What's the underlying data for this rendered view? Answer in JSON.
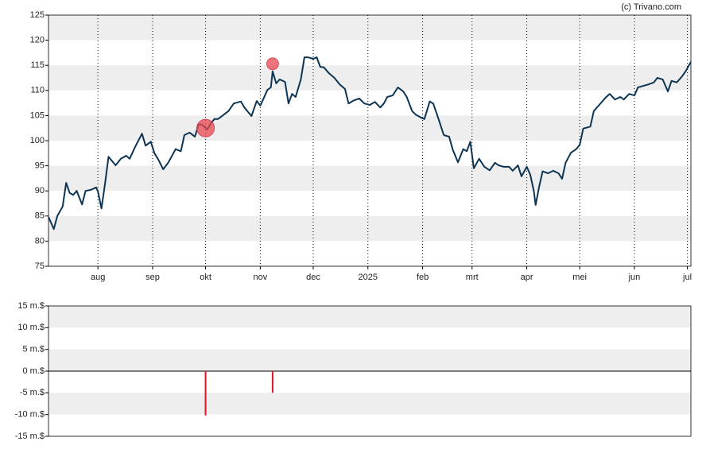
{
  "chart_data": [
    {
      "type": "line",
      "credit": "(c) Trivano.com",
      "x": [
        -28,
        -25,
        -23,
        -20,
        -18,
        -16,
        -14,
        -12,
        -9,
        -7,
        -4,
        -1,
        0,
        2,
        4,
        6,
        10,
        13,
        16,
        18,
        21,
        25,
        27,
        30,
        32,
        34,
        37,
        40,
        44,
        47,
        49,
        52,
        55,
        57,
        59,
        62,
        64,
        66,
        68,
        71,
        74,
        77,
        81,
        83,
        87,
        90,
        92,
        94,
        96,
        98,
        99,
        101,
        103,
        106,
        108,
        110,
        112,
        115,
        117,
        119,
        122,
        124,
        126,
        128,
        131,
        134,
        137,
        140,
        142,
        145,
        148,
        151,
        154,
        157,
        160,
        162,
        164,
        167,
        170,
        173,
        175,
        178,
        180,
        183,
        185,
        188,
        190,
        193,
        196,
        199,
        201,
        204,
        207,
        209,
        211,
        213,
        216,
        219,
        222,
        225,
        227,
        230,
        233,
        235,
        238,
        240,
        243,
        245,
        247,
        248,
        250,
        252,
        255,
        258,
        261,
        263,
        265,
        268,
        271,
        273,
        275,
        279,
        281,
        284,
        288,
        290,
        293,
        296,
        298,
        301,
        304,
        306,
        309,
        312,
        315,
        317,
        320,
        323,
        325,
        328,
        331,
        333,
        336
      ],
      "series": [
        {
          "color": "#0d3553",
          "values": [
            84.8,
            82.4,
            85,
            86.9,
            91.6,
            89.6,
            89.2,
            90,
            87.3,
            90,
            90.2,
            90.7,
            89.9,
            86.5,
            91.3,
            96.8,
            95.1,
            96.4,
            97,
            96.4,
            98.7,
            101.4,
            99,
            99.8,
            97.5,
            96.4,
            94.3,
            95.7,
            98.3,
            97.9,
            101.1,
            101.6,
            100.8,
            103.2,
            103.2,
            102.2,
            103.5,
            104.3,
            104.3,
            105.1,
            105.9,
            107.4,
            107.8,
            106.6,
            104.9,
            107.9,
            107,
            108.5,
            110.1,
            110.6,
            113.8,
            111.4,
            112.2,
            111.7,
            107.4,
            109.3,
            108.7,
            112.2,
            116.6,
            116.6,
            116.3,
            116.6,
            114.7,
            114.6,
            113.4,
            112.5,
            111.2,
            110.3,
            107.4,
            108,
            108.4,
            107.4,
            107.1,
            107.7,
            106.6,
            107.4,
            108.7,
            109,
            110.6,
            109.8,
            108.7,
            105.9,
            105.2,
            104.6,
            104.3,
            107.8,
            107.4,
            104.3,
            101.1,
            100.8,
            98.3,
            95.7,
            98.3,
            97.9,
            99.8,
            94.5,
            96.4,
            94.8,
            94.1,
            95.6,
            95.1,
            94.8,
            94.8,
            94,
            95.1,
            92.9,
            94.8,
            93.2,
            90,
            87.2,
            90.8,
            93.9,
            93.5,
            94,
            93.5,
            92.4,
            95.6,
            97.6,
            98.3,
            99.2,
            102.4,
            102.8,
            105.9,
            107.1,
            108.7,
            109.3,
            108.2,
            108.7,
            108.2,
            109.3,
            109,
            110.6,
            110.9,
            111.2,
            111.6,
            112.5,
            112.2,
            109.8,
            111.9,
            111.6,
            112.8,
            113.8,
            115.7
          ]
        }
      ],
      "markers": {
        "x": [
          61,
          99
        ],
        "values": [
          102.5,
          115.3
        ],
        "color": "#e8474f"
      },
      "xlim": [
        -28,
        336
      ],
      "xticks": [
        {
          "value": 0,
          "label": "aug"
        },
        {
          "value": 31,
          "label": "sep"
        },
        {
          "value": 61,
          "label": "okt"
        },
        {
          "value": 92,
          "label": "nov"
        },
        {
          "value": 122,
          "label": "dec"
        },
        {
          "value": 153,
          "label": "2025"
        },
        {
          "value": 184,
          "label": "feb"
        },
        {
          "value": 212,
          "label": "mrt"
        },
        {
          "value": 243,
          "label": "apr"
        },
        {
          "value": 273,
          "label": "mei"
        },
        {
          "value": 304,
          "label": "jun"
        },
        {
          "value": 334,
          "label": "jul"
        }
      ],
      "ylim": [
        75,
        125
      ],
      "yticks": [
        75,
        80,
        85,
        90,
        95,
        100,
        105,
        110,
        115,
        120,
        125
      ]
    },
    {
      "type": "bar",
      "x": [
        61,
        99
      ],
      "values": [
        -10.2,
        -5
      ],
      "color": "#d9182a",
      "xlim": [
        -28,
        336
      ],
      "ylim": [
        -15,
        15
      ],
      "yticks": [
        {
          "value": -15,
          "label": "-15 m.$"
        },
        {
          "value": -10,
          "label": "-10 m.$"
        },
        {
          "value": -5,
          "label": "-5 m.$"
        },
        {
          "value": 0,
          "label": "0 m.$"
        },
        {
          "value": 5,
          "label": "5 m.$"
        },
        {
          "value": 10,
          "label": "10 m.$"
        },
        {
          "value": 15,
          "label": "15 m.$"
        }
      ]
    }
  ]
}
